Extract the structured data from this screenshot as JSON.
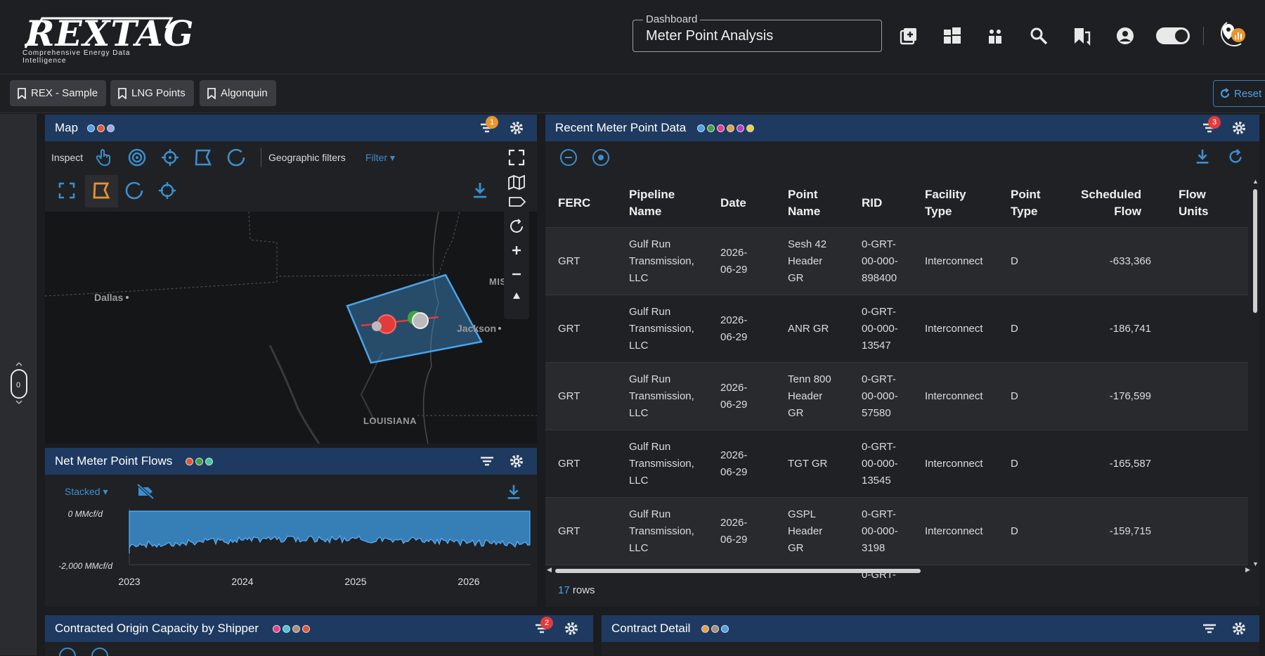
{
  "brand": {
    "name": "REXTAG",
    "tagline": "Comprehensive Energy Data Intelligence"
  },
  "dashboard": {
    "label": "Dashboard",
    "value": "Meter Point Analysis"
  },
  "toolbar_icons": [
    "add-dashboard-icon",
    "layout-icon",
    "compare-icon",
    "search-icon",
    "bookmark-icon",
    "account-icon",
    "theme-toggle",
    "map-point-logo-icon"
  ],
  "saved_views": [
    {
      "label": "REX - Sample"
    },
    {
      "label": "LNG Points"
    },
    {
      "label": "Algonquin"
    }
  ],
  "reset_label": "Reset",
  "mouse_indicator": "0",
  "map_panel": {
    "title": "Map",
    "dot_colors": [
      "#4aa3e8",
      "#e8542f",
      "#9aa9e8"
    ],
    "filter_badge": "1",
    "inspect_label": "Inspect",
    "geo_filters_label": "Geographic filters",
    "filter_label": "Filter",
    "places": {
      "dallas": "Dallas",
      "jackson": "Jackson",
      "louisiana": "LOUISIANA",
      "mississippi": "MISSI"
    }
  },
  "flows_panel": {
    "title": "Net Meter Point Flows",
    "dot_colors": [
      "#e8542f",
      "#3fa33f",
      "#3fc9a0"
    ],
    "mode_label": "Stacked",
    "chart_data": {
      "type": "area",
      "x_ticks": [
        "2023",
        "2024",
        "2025",
        "2026"
      ],
      "y_ticks": [
        "0 MMcf/d",
        "-2,000 MMcf/d"
      ],
      "ylim": [
        -2000,
        0
      ],
      "series_color": "#3b8fd0"
    }
  },
  "recent_panel": {
    "title": "Recent Meter Point Data",
    "dot_colors": [
      "#4aa3e8",
      "#3fa33f",
      "#e83f8a",
      "#e8a13f",
      "#b33fc9",
      "#e8d13f"
    ],
    "filter_badge": "3",
    "columns": [
      {
        "key": "ferc",
        "label": "FERC"
      },
      {
        "key": "pipeline",
        "label": "Pipeline Name"
      },
      {
        "key": "date",
        "label": "Date"
      },
      {
        "key": "point",
        "label": "Point Name"
      },
      {
        "key": "rid",
        "label": "RID"
      },
      {
        "key": "facility",
        "label": "Facility Type"
      },
      {
        "key": "ptype",
        "label": "Point Type"
      },
      {
        "key": "flow",
        "label": "Scheduled Flow"
      },
      {
        "key": "units",
        "label": "Flow Units"
      }
    ],
    "rows": [
      {
        "ferc": "GRT",
        "pipeline": "Gulf Run Transmission, LLC",
        "date": "2026-06-29",
        "point": "Sesh 42 Header GR",
        "rid": "0-GRT-00-000-898400",
        "facility": "Interconnect",
        "ptype": "D",
        "flow": "-633,366",
        "units": ""
      },
      {
        "ferc": "GRT",
        "pipeline": "Gulf Run Transmission, LLC",
        "date": "2026-06-29",
        "point": "ANR GR",
        "rid": "0-GRT-00-000-13547",
        "facility": "Interconnect",
        "ptype": "D",
        "flow": "-186,741",
        "units": ""
      },
      {
        "ferc": "GRT",
        "pipeline": "Gulf Run Transmission, LLC",
        "date": "2026-06-29",
        "point": "Tenn 800 Header GR",
        "rid": "0-GRT-00-000-57580",
        "facility": "Interconnect",
        "ptype": "D",
        "flow": "-176,599",
        "units": ""
      },
      {
        "ferc": "GRT",
        "pipeline": "Gulf Run Transmission, LLC",
        "date": "2026-06-29",
        "point": "TGT GR",
        "rid": "0-GRT-00-000-13545",
        "facility": "Interconnect",
        "ptype": "D",
        "flow": "-165,587",
        "units": ""
      },
      {
        "ferc": "GRT",
        "pipeline": "Gulf Run Transmission, LLC",
        "date": "2026-06-29",
        "point": "GSPL Header GR",
        "rid": "0-GRT-00-000-3198",
        "facility": "Interconnect",
        "ptype": "D",
        "flow": "-159,715",
        "units": ""
      },
      {
        "ferc": "",
        "pipeline": "",
        "date": "",
        "point": "",
        "rid": "0-GRT-",
        "facility": "",
        "ptype": "",
        "flow": "",
        "units": ""
      }
    ],
    "row_count": "17",
    "rows_suffix": "rows"
  },
  "capacity_panel": {
    "title": "Contracted Origin Capacity by Shipper",
    "dot_colors": [
      "#e83f8a",
      "#3fc9d0",
      "#b08a7a",
      "#e8542f"
    ],
    "filter_badge": "2"
  },
  "contract_panel": {
    "title": "Contract Detail",
    "dot_colors": [
      "#e8a13f",
      "#b08a7a",
      "#4aa3e8"
    ]
  }
}
